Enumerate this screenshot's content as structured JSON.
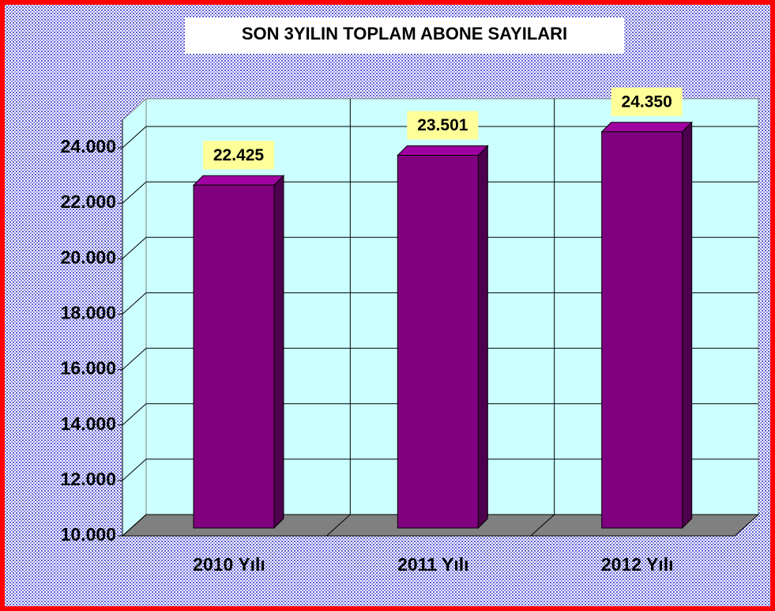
{
  "chart_data": {
    "type": "bar",
    "title": "SON 3YILIN TOPLAM ABONE SAYILARI",
    "categories": [
      "2010 Yılı",
      "2011 Yılı",
      "2012 Yılı"
    ],
    "values": [
      22425,
      23501,
      24350
    ],
    "value_labels": [
      "22.425",
      "23.501",
      "24.350"
    ],
    "color": "#800080",
    "ylim": [
      10000,
      25000
    ],
    "yticks": [
      {
        "value": 10000,
        "label": "10.000"
      },
      {
        "value": 12000,
        "label": "12.000"
      },
      {
        "value": 14000,
        "label": "14.000"
      },
      {
        "value": 16000,
        "label": "16.000"
      },
      {
        "value": 18000,
        "label": "18.000"
      },
      {
        "value": 20000,
        "label": "20.000"
      },
      {
        "value": 22000,
        "label": "22.000"
      },
      {
        "value": 24000,
        "label": "24.000"
      }
    ],
    "grid": true
  }
}
